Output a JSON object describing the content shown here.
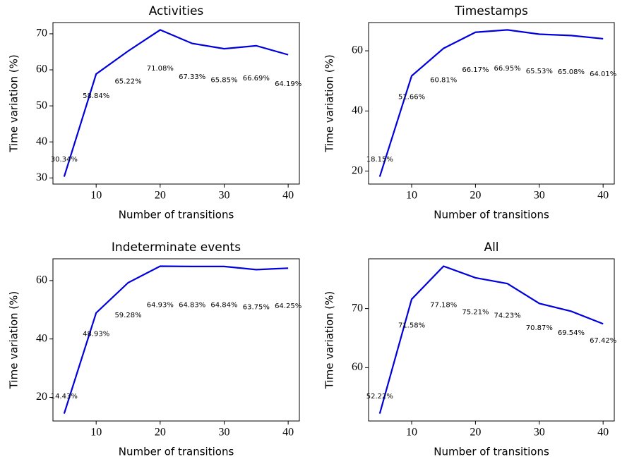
{
  "chart_data": [
    {
      "type": "line",
      "title": "Activities",
      "xlabel": "Number of transitions",
      "ylabel": "Time variation (%)",
      "x": [
        5,
        10,
        15,
        20,
        25,
        30,
        35,
        40
      ],
      "values": [
        30.34,
        58.84,
        65.22,
        71.08,
        67.33,
        65.85,
        66.69,
        64.19
      ],
      "value_labels": [
        "30.34%",
        "58.84%",
        "65.22%",
        "71.08%",
        "67.33%",
        "65.85%",
        "66.69%",
        "64.19%"
      ],
      "color": "#0000dd",
      "xlim": [
        3.25,
        41.75
      ],
      "ylim": [
        28.3,
        73.12
      ],
      "xticks": [
        10,
        20,
        30,
        40
      ],
      "yticks": [
        30,
        40,
        50,
        60,
        70
      ]
    },
    {
      "type": "line",
      "title": "Timestamps",
      "xlabel": "Number of transitions",
      "ylabel": "Time variation (%)",
      "x": [
        5,
        10,
        15,
        20,
        25,
        30,
        35,
        40
      ],
      "values": [
        18.15,
        51.66,
        60.81,
        66.17,
        66.95,
        65.53,
        65.08,
        64.01
      ],
      "value_labels": [
        "18.15%",
        "51.66%",
        "60.81%",
        "66.17%",
        "66.95%",
        "65.53%",
        "65.08%",
        "64.01%"
      ],
      "color": "#0000dd",
      "xlim": [
        3.25,
        41.75
      ],
      "ylim": [
        15.71,
        69.39
      ],
      "xticks": [
        10,
        20,
        30,
        40
      ],
      "yticks": [
        20,
        40,
        60
      ]
    },
    {
      "type": "line",
      "title": "Indeterminate events",
      "xlabel": "Number of transitions",
      "ylabel": "Time variation (%)",
      "x": [
        5,
        10,
        15,
        20,
        25,
        30,
        35,
        40
      ],
      "values": [
        14.43,
        48.93,
        59.28,
        64.93,
        64.83,
        64.84,
        63.75,
        64.25
      ],
      "value_labels": [
        "14.43%",
        "48.93%",
        "59.28%",
        "64.93%",
        "64.83%",
        "64.84%",
        "63.75%",
        "64.25%"
      ],
      "color": "#0000dd",
      "xlim": [
        3.25,
        41.75
      ],
      "ylim": [
        11.9,
        67.46
      ],
      "xticks": [
        10,
        20,
        30,
        40
      ],
      "yticks": [
        20,
        40,
        60
      ]
    },
    {
      "type": "line",
      "title": "All",
      "xlabel": "Number of transitions",
      "ylabel": "Time variation (%)",
      "x": [
        5,
        10,
        15,
        20,
        25,
        30,
        35,
        40
      ],
      "values": [
        52.22,
        71.58,
        77.18,
        75.21,
        74.23,
        70.87,
        69.54,
        67.42
      ],
      "value_labels": [
        "52.22%",
        "71.58%",
        "77.18%",
        "75.21%",
        "74.23%",
        "70.87%",
        "69.54%",
        "67.42%"
      ],
      "color": "#0000dd",
      "xlim": [
        3.25,
        41.75
      ],
      "ylim": [
        50.97,
        78.43
      ],
      "xticks": [
        10,
        20,
        30,
        40
      ],
      "yticks": [
        60,
        70
      ]
    }
  ]
}
